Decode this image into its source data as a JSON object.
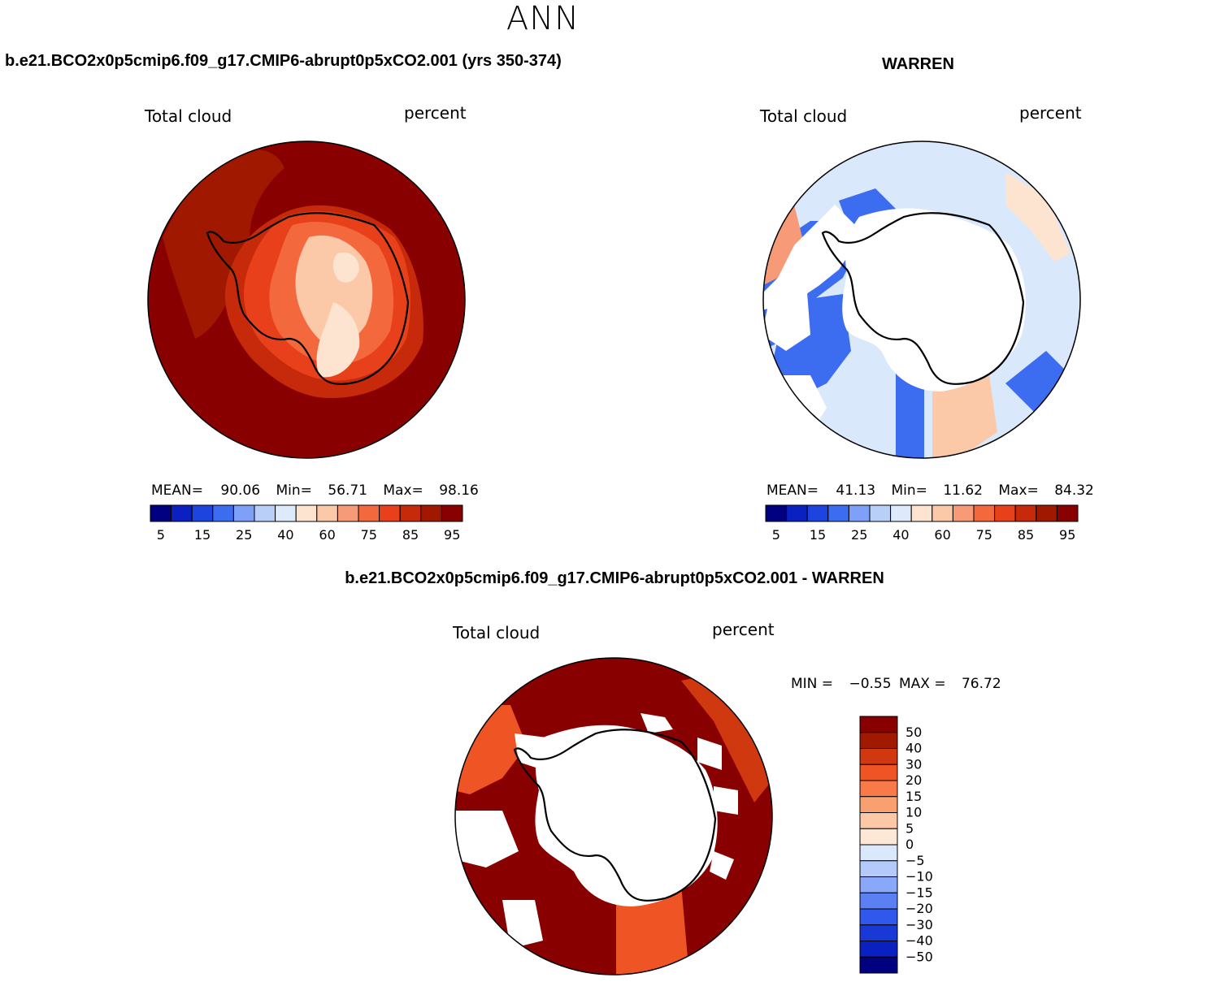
{
  "suptitle": "ANN",
  "colors": {
    "seq": [
      "#000080",
      "#0a20c0",
      "#1e44e0",
      "#3c6cf0",
      "#7ea0f8",
      "#b8cff8",
      "#ddeafc",
      "#fde4d0",
      "#fbc8a8",
      "#f79a78",
      "#f4683e",
      "#e8401a",
      "#c62a0a",
      "#a01800",
      "#880000"
    ],
    "diff": [
      "#000080",
      "#0a20c0",
      "#1a38d8",
      "#3058ec",
      "#5a80f4",
      "#8aa8f8",
      "#b4cafa",
      "#dae8fc",
      "#fde8d8",
      "#fcc8a8",
      "#f9a070",
      "#f77a48",
      "#ee5424",
      "#d03810",
      "#a01a00",
      "#880000"
    ]
  },
  "chart_data": [
    {
      "type": "heatmap",
      "projection": "south-polar-stereographic",
      "title": "b.e21.BCO2x0p5cmip6.f09_g17.CMIP6-abrupt0p5xCO2.001 (yrs 350-374)",
      "variable_label": "Total cloud",
      "units_label": "percent",
      "stats": {
        "mean_label": "MEAN=",
        "mean": "90.06",
        "min_label": "Min=",
        "min": "56.71",
        "max_label": "Max=",
        "max": "98.16"
      },
      "colorbar_ticks": [
        "5",
        "15",
        "25",
        "40",
        "60",
        "75",
        "85",
        "95"
      ]
    },
    {
      "type": "heatmap",
      "projection": "south-polar-stereographic",
      "title": "WARREN",
      "variable_label": "Total cloud",
      "units_label": "percent",
      "stats": {
        "mean_label": "MEAN=",
        "mean": "41.13",
        "min_label": "Min=",
        "min": "11.62",
        "max_label": "Max=",
        "max": "84.32"
      },
      "colorbar_ticks": [
        "5",
        "15",
        "25",
        "40",
        "60",
        "75",
        "85",
        "95"
      ]
    },
    {
      "type": "heatmap",
      "projection": "south-polar-stereographic",
      "title": "b.e21.BCO2x0p5cmip6.f09_g17.CMIP6-abrupt0p5xCO2.001 - WARREN",
      "variable_label": "Total cloud",
      "units_label": "percent",
      "stats": {
        "min_label": "MIN =",
        "min": "−0.55",
        "max_label": "MAX =",
        "max": "76.72"
      },
      "colorbar_ticks": [
        "50",
        "40",
        "30",
        "20",
        "15",
        "10",
        "5",
        "0",
        "−5",
        "−10",
        "−15",
        "−20",
        "−30",
        "−40",
        "−50"
      ]
    }
  ]
}
